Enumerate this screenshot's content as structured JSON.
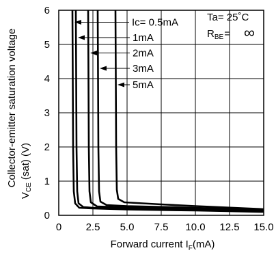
{
  "chart_data": {
    "type": "line",
    "xlabel": "Forward current I",
    "xlabel_sub": "F",
    "xlabel_unit": "(mA)",
    "ylabel_line1": "Collector-emitter saturation voltage",
    "ylabel_line2_main": "V",
    "ylabel_line2_sub": "CE",
    "ylabel_line2_rest": "(sat) (V)",
    "xlim": [
      0,
      15
    ],
    "ylim": [
      0,
      6
    ],
    "x_ticks": [
      0,
      2.5,
      5.0,
      7.5,
      10.0,
      12.5,
      15.0
    ],
    "x_tick_labels": [
      "0",
      "2.5",
      "5.0",
      "7.5",
      "10.0",
      "12.5",
      "15.0"
    ],
    "y_ticks": [
      0,
      1,
      2,
      3,
      4,
      5,
      6
    ],
    "y_tick_labels": [
      "0",
      "1",
      "2",
      "3",
      "4",
      "5",
      "6"
    ],
    "grid": true,
    "conditions": {
      "ta_label": "Ta= 25˚C",
      "rbe_main": "R",
      "rbe_sub": "BE",
      "rbe_rest": "=",
      "rbe_value": "∞"
    },
    "series": [
      {
        "name": "Ic= 0.5mA",
        "arrow_y": 5.65,
        "points": [
          [
            1.0,
            6.0
          ],
          [
            1.02,
            4.5
          ],
          [
            1.05,
            2.0
          ],
          [
            1.1,
            0.7
          ],
          [
            1.2,
            0.35
          ],
          [
            1.5,
            0.22
          ],
          [
            2.5,
            0.2
          ],
          [
            5.0,
            0.17
          ],
          [
            10.0,
            0.14
          ],
          [
            15.0,
            0.1
          ]
        ]
      },
      {
        "name": "1mA",
        "arrow_y": 5.2,
        "points": [
          [
            1.25,
            6.0
          ],
          [
            1.27,
            4.5
          ],
          [
            1.3,
            2.0
          ],
          [
            1.35,
            0.7
          ],
          [
            1.45,
            0.35
          ],
          [
            1.8,
            0.24
          ],
          [
            2.5,
            0.22
          ],
          [
            5.0,
            0.2
          ],
          [
            10.0,
            0.16
          ],
          [
            15.0,
            0.12
          ]
        ]
      },
      {
        "name": "2mA",
        "arrow_y": 4.75,
        "points": [
          [
            2.15,
            6.0
          ],
          [
            2.17,
            4.5
          ],
          [
            2.2,
            2.0
          ],
          [
            2.25,
            0.7
          ],
          [
            2.35,
            0.38
          ],
          [
            2.8,
            0.26
          ],
          [
            5.0,
            0.23
          ],
          [
            10.0,
            0.19
          ],
          [
            15.0,
            0.14
          ]
        ]
      },
      {
        "name": "3mA",
        "arrow_y": 4.3,
        "points": [
          [
            2.85,
            6.0
          ],
          [
            2.87,
            4.5
          ],
          [
            2.9,
            2.0
          ],
          [
            2.95,
            0.7
          ],
          [
            3.05,
            0.4
          ],
          [
            3.5,
            0.3
          ],
          [
            5.0,
            0.27
          ],
          [
            10.0,
            0.22
          ],
          [
            15.0,
            0.16
          ]
        ]
      },
      {
        "name": "5mA",
        "arrow_y": 3.82,
        "points": [
          [
            4.15,
            6.0
          ],
          [
            4.17,
            4.5
          ],
          [
            4.2,
            2.0
          ],
          [
            4.25,
            0.75
          ],
          [
            4.35,
            0.48
          ],
          [
            4.8,
            0.38
          ],
          [
            7.5,
            0.32
          ],
          [
            10.0,
            0.27
          ],
          [
            15.0,
            0.18
          ]
        ]
      }
    ]
  }
}
